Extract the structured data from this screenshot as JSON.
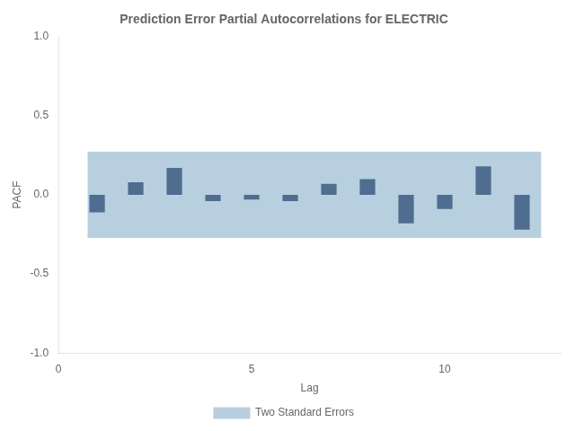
{
  "chart_data": {
    "type": "bar",
    "title": "Prediction Error Partial Autocorrelations for ELECTRIC",
    "x_label": "Lag",
    "y_label": "PACF",
    "x": [
      1,
      2,
      3,
      4,
      5,
      6,
      7,
      8,
      9,
      10,
      11,
      12
    ],
    "values": [
      -0.11,
      0.08,
      0.17,
      -0.04,
      -0.03,
      -0.04,
      0.07,
      0.1,
      -0.18,
      -0.09,
      0.18,
      -0.22
    ],
    "color": "#4f6d8f",
    "band": {
      "name": "Two Standard Errors",
      "x": [
        0.75,
        12.5
      ],
      "lower": -0.27,
      "upper": 0.27,
      "color": "#b8cfe0"
    },
    "xlim": [
      0,
      13
    ],
    "xticks": [
      0,
      5,
      10
    ],
    "ylim": [
      -1.0,
      1.0
    ],
    "yticks": [
      {
        "value": -1.0,
        "label": "-1.0"
      },
      -0.5,
      {
        "value": 0.0,
        "label": "0.0"
      },
      0.5,
      {
        "value": 1.0,
        "label": "1.0"
      }
    ],
    "grid": false,
    "legend": "bottom"
  }
}
